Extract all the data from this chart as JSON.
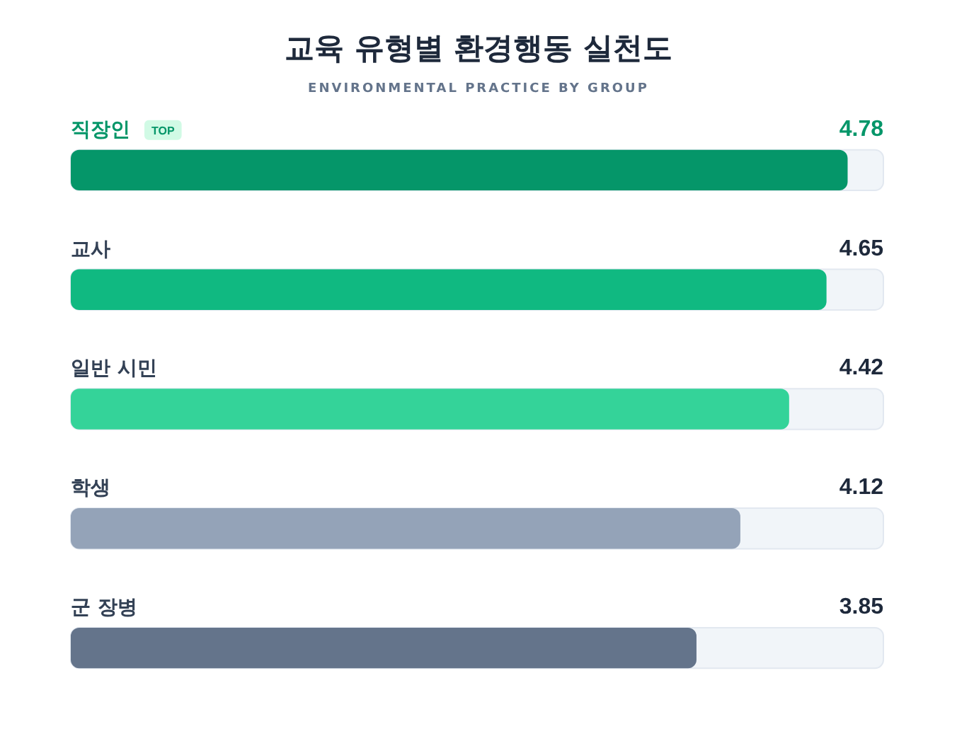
{
  "chart_data": {
    "type": "bar",
    "orientation": "horizontal",
    "title": "교육 유형별 환경행동 실천도",
    "subtitle": "ENVIRONMENTAL PRACTICE BY GROUP",
    "categories": [
      "직장인",
      "교사",
      "일반 시민",
      "학생",
      "군 장병"
    ],
    "values": [
      4.78,
      4.65,
      4.42,
      4.12,
      3.85
    ],
    "colors": [
      "#059669",
      "#10b981",
      "#34d399",
      "#94a3b8",
      "#64748b"
    ],
    "xlim": [
      0,
      5
    ],
    "data_labels": true,
    "legend": false,
    "annotations": [
      {
        "text": "TOP",
        "y": "직장인"
      }
    ]
  }
}
